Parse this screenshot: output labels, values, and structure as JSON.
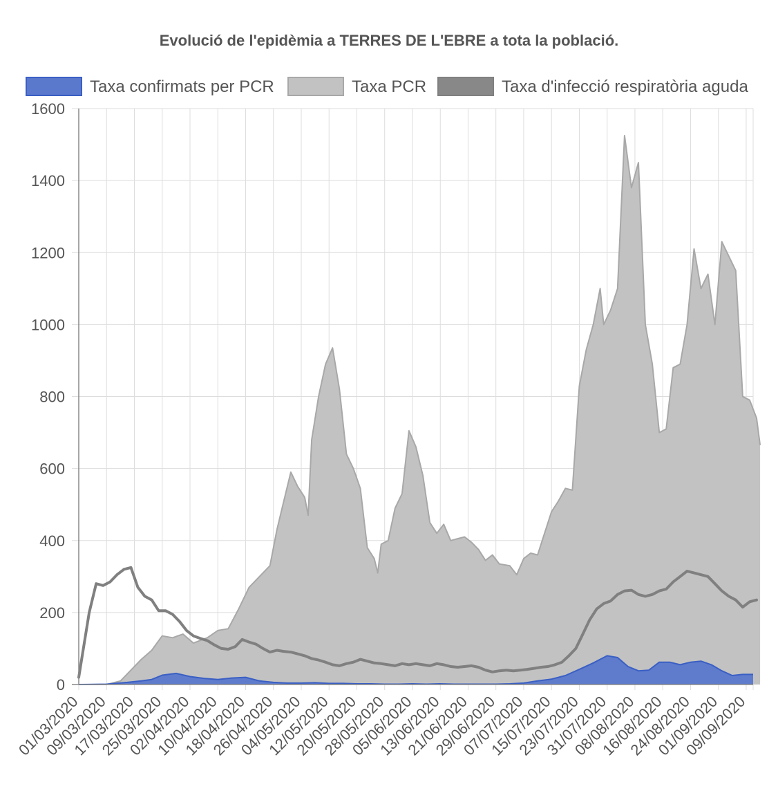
{
  "chart_data": {
    "type": "area",
    "title": "Evolució de l'epidèmia a TERRES DE L'EBRE a tota la població.",
    "xlabel": "",
    "ylabel": "",
    "ylim": [
      0,
      1600
    ],
    "yticks": [
      0,
      200,
      400,
      600,
      800,
      1000,
      1200,
      1400,
      1600
    ],
    "grid": true,
    "legend_position": "top",
    "x_start": "01/03/2020",
    "x_end": "11/09/2020",
    "x_tick_labels": [
      "01/03/2020",
      "09/03/2020",
      "17/03/2020",
      "25/03/2020",
      "02/04/2020",
      "10/04/2020",
      "18/04/2020",
      "26/04/2020",
      "04/05/2020",
      "12/05/2020",
      "20/05/2020",
      "28/05/2020",
      "05/06/2020",
      "13/06/2020",
      "21/06/2020",
      "29/06/2020",
      "07/07/2020",
      "15/07/2020",
      "23/07/2020",
      "31/07/2020",
      "08/08/2020",
      "16/08/2020",
      "24/08/2020",
      "01/09/2020",
      "09/09/2020"
    ],
    "series": [
      {
        "name": "Taxa confirmats per PCR",
        "style": "area",
        "color": "#3a5fc4",
        "fill": "#5a78cc",
        "points": [
          [
            "01/03/2020",
            0
          ],
          [
            "09/03/2020",
            1
          ],
          [
            "15/03/2020",
            6
          ],
          [
            "19/03/2020",
            10
          ],
          [
            "22/03/2020",
            14
          ],
          [
            "25/03/2020",
            26
          ],
          [
            "29/03/2020",
            31
          ],
          [
            "02/04/2020",
            22
          ],
          [
            "06/04/2020",
            17
          ],
          [
            "10/04/2020",
            14
          ],
          [
            "14/04/2020",
            18
          ],
          [
            "18/04/2020",
            20
          ],
          [
            "22/04/2020",
            10
          ],
          [
            "26/04/2020",
            6
          ],
          [
            "30/04/2020",
            4
          ],
          [
            "04/05/2020",
            4
          ],
          [
            "08/05/2020",
            5
          ],
          [
            "12/05/2020",
            3
          ],
          [
            "16/05/2020",
            3
          ],
          [
            "20/05/2020",
            2
          ],
          [
            "24/05/2020",
            2
          ],
          [
            "28/05/2020",
            1
          ],
          [
            "01/06/2020",
            1
          ],
          [
            "05/06/2020",
            2
          ],
          [
            "09/06/2020",
            1
          ],
          [
            "13/06/2020",
            2
          ],
          [
            "17/06/2020",
            1
          ],
          [
            "21/06/2020",
            1
          ],
          [
            "25/06/2020",
            1
          ],
          [
            "29/06/2020",
            1
          ],
          [
            "03/07/2020",
            2
          ],
          [
            "07/07/2020",
            4
          ],
          [
            "11/07/2020",
            10
          ],
          [
            "15/07/2020",
            15
          ],
          [
            "19/07/2020",
            25
          ],
          [
            "23/07/2020",
            42
          ],
          [
            "27/07/2020",
            60
          ],
          [
            "31/07/2020",
            80
          ],
          [
            "03/08/2020",
            75
          ],
          [
            "06/08/2020",
            50
          ],
          [
            "09/08/2020",
            38
          ],
          [
            "12/08/2020",
            40
          ],
          [
            "15/08/2020",
            62
          ],
          [
            "18/08/2020",
            62
          ],
          [
            "21/08/2020",
            55
          ],
          [
            "24/08/2020",
            62
          ],
          [
            "27/08/2020",
            65
          ],
          [
            "30/08/2020",
            55
          ],
          [
            "02/09/2020",
            38
          ],
          [
            "05/09/2020",
            25
          ],
          [
            "08/09/2020",
            28
          ],
          [
            "11/09/2020",
            28
          ]
        ]
      },
      {
        "name": "Taxa PCR",
        "style": "area",
        "color": "#a8a8a8",
        "fill": "#c2c2c2",
        "points": [
          [
            "01/03/2020",
            0
          ],
          [
            "09/03/2020",
            0
          ],
          [
            "13/03/2020",
            10
          ],
          [
            "16/03/2020",
            40
          ],
          [
            "19/03/2020",
            70
          ],
          [
            "22/03/2020",
            95
          ],
          [
            "25/03/2020",
            135
          ],
          [
            "28/03/2020",
            130
          ],
          [
            "31/03/2020",
            140
          ],
          [
            "03/04/2020",
            115
          ],
          [
            "07/04/2020",
            130
          ],
          [
            "10/04/2020",
            150
          ],
          [
            "13/04/2020",
            155
          ],
          [
            "16/04/2020",
            210
          ],
          [
            "19/04/2020",
            270
          ],
          [
            "22/04/2020",
            300
          ],
          [
            "25/04/2020",
            330
          ],
          [
            "27/04/2020",
            430
          ],
          [
            "29/04/2020",
            510
          ],
          [
            "01/05/2020",
            590
          ],
          [
            "03/05/2020",
            550
          ],
          [
            "05/05/2020",
            520
          ],
          [
            "06/05/2020",
            470
          ],
          [
            "07/05/2020",
            680
          ],
          [
            "09/05/2020",
            800
          ],
          [
            "11/05/2020",
            890
          ],
          [
            "13/05/2020",
            935
          ],
          [
            "15/05/2020",
            820
          ],
          [
            "17/05/2020",
            640
          ],
          [
            "19/05/2020",
            600
          ],
          [
            "21/05/2020",
            545
          ],
          [
            "23/05/2020",
            380
          ],
          [
            "25/05/2020",
            350
          ],
          [
            "26/05/2020",
            310
          ],
          [
            "27/05/2020",
            390
          ],
          [
            "29/05/2020",
            400
          ],
          [
            "31/05/2020",
            490
          ],
          [
            "02/06/2020",
            530
          ],
          [
            "04/06/2020",
            705
          ],
          [
            "06/06/2020",
            660
          ],
          [
            "08/06/2020",
            580
          ],
          [
            "10/06/2020",
            450
          ],
          [
            "12/06/2020",
            420
          ],
          [
            "14/06/2020",
            445
          ],
          [
            "16/06/2020",
            400
          ],
          [
            "18/06/2020",
            405
          ],
          [
            "20/06/2020",
            410
          ],
          [
            "22/06/2020",
            395
          ],
          [
            "24/06/2020",
            375
          ],
          [
            "26/06/2020",
            345
          ],
          [
            "28/06/2020",
            360
          ],
          [
            "30/06/2020",
            335
          ],
          [
            "03/07/2020",
            330
          ],
          [
            "05/07/2020",
            305
          ],
          [
            "07/07/2020",
            350
          ],
          [
            "09/07/2020",
            365
          ],
          [
            "11/07/2020",
            360
          ],
          [
            "13/07/2020",
            420
          ],
          [
            "15/07/2020",
            480
          ],
          [
            "17/07/2020",
            510
          ],
          [
            "19/07/2020",
            545
          ],
          [
            "21/07/2020",
            540
          ],
          [
            "23/07/2020",
            830
          ],
          [
            "25/07/2020",
            930
          ],
          [
            "27/07/2020",
            1000
          ],
          [
            "29/07/2020",
            1100
          ],
          [
            "30/07/2020",
            1000
          ],
          [
            "01/08/2020",
            1040
          ],
          [
            "03/08/2020",
            1100
          ],
          [
            "05/08/2020",
            1525
          ],
          [
            "07/08/2020",
            1380
          ],
          [
            "09/08/2020",
            1450
          ],
          [
            "11/08/2020",
            1000
          ],
          [
            "13/08/2020",
            890
          ],
          [
            "15/08/2020",
            700
          ],
          [
            "17/08/2020",
            710
          ],
          [
            "19/08/2020",
            880
          ],
          [
            "21/08/2020",
            890
          ],
          [
            "23/08/2020",
            1000
          ],
          [
            "25/08/2020",
            1210
          ],
          [
            "27/08/2020",
            1100
          ],
          [
            "29/08/2020",
            1140
          ],
          [
            "31/08/2020",
            1000
          ],
          [
            "02/09/2020",
            1230
          ],
          [
            "04/09/2020",
            1190
          ],
          [
            "06/09/2020",
            1150
          ],
          [
            "08/09/2020",
            800
          ],
          [
            "10/09/2020",
            790
          ],
          [
            "12/09/2020",
            740
          ],
          [
            "13/09/2020",
            665
          ]
        ]
      },
      {
        "name": "Taxa d'infecció respiratòria aguda",
        "style": "line",
        "color": "#808080",
        "fill": "#888888",
        "points": [
          [
            "01/03/2020",
            20
          ],
          [
            "02/03/2020",
            80
          ],
          [
            "04/03/2020",
            200
          ],
          [
            "06/03/2020",
            280
          ],
          [
            "08/03/2020",
            275
          ],
          [
            "10/03/2020",
            285
          ],
          [
            "12/03/2020",
            305
          ],
          [
            "14/03/2020",
            320
          ],
          [
            "16/03/2020",
            325
          ],
          [
            "18/03/2020",
            270
          ],
          [
            "20/03/2020",
            245
          ],
          [
            "22/03/2020",
            235
          ],
          [
            "24/03/2020",
            205
          ],
          [
            "26/03/2020",
            205
          ],
          [
            "28/03/2020",
            195
          ],
          [
            "30/03/2020",
            175
          ],
          [
            "01/04/2020",
            150
          ],
          [
            "03/04/2020",
            135
          ],
          [
            "05/04/2020",
            128
          ],
          [
            "07/04/2020",
            122
          ],
          [
            "09/04/2020",
            110
          ],
          [
            "11/04/2020",
            100
          ],
          [
            "13/04/2020",
            98
          ],
          [
            "15/04/2020",
            105
          ],
          [
            "17/04/2020",
            125
          ],
          [
            "19/04/2020",
            118
          ],
          [
            "21/04/2020",
            112
          ],
          [
            "23/04/2020",
            100
          ],
          [
            "25/04/2020",
            90
          ],
          [
            "27/04/2020",
            95
          ],
          [
            "29/04/2020",
            92
          ],
          [
            "01/05/2020",
            90
          ],
          [
            "03/05/2020",
            85
          ],
          [
            "05/05/2020",
            80
          ],
          [
            "07/05/2020",
            72
          ],
          [
            "09/05/2020",
            68
          ],
          [
            "11/05/2020",
            62
          ],
          [
            "13/05/2020",
            55
          ],
          [
            "15/05/2020",
            52
          ],
          [
            "17/05/2020",
            58
          ],
          [
            "19/05/2020",
            62
          ],
          [
            "21/05/2020",
            70
          ],
          [
            "23/05/2020",
            65
          ],
          [
            "25/05/2020",
            60
          ],
          [
            "27/05/2020",
            58
          ],
          [
            "29/05/2020",
            55
          ],
          [
            "31/05/2020",
            52
          ],
          [
            "02/06/2020",
            58
          ],
          [
            "04/06/2020",
            55
          ],
          [
            "06/06/2020",
            58
          ],
          [
            "08/06/2020",
            55
          ],
          [
            "10/06/2020",
            52
          ],
          [
            "12/06/2020",
            58
          ],
          [
            "14/06/2020",
            55
          ],
          [
            "16/06/2020",
            50
          ],
          [
            "18/06/2020",
            48
          ],
          [
            "20/06/2020",
            50
          ],
          [
            "22/06/2020",
            52
          ],
          [
            "24/06/2020",
            48
          ],
          [
            "26/06/2020",
            40
          ],
          [
            "28/06/2020",
            35
          ],
          [
            "30/06/2020",
            38
          ],
          [
            "02/07/2020",
            40
          ],
          [
            "04/07/2020",
            38
          ],
          [
            "06/07/2020",
            40
          ],
          [
            "08/07/2020",
            42
          ],
          [
            "10/07/2020",
            45
          ],
          [
            "12/07/2020",
            48
          ],
          [
            "14/07/2020",
            50
          ],
          [
            "16/07/2020",
            55
          ],
          [
            "18/07/2020",
            62
          ],
          [
            "20/07/2020",
            80
          ],
          [
            "22/07/2020",
            100
          ],
          [
            "24/07/2020",
            140
          ],
          [
            "26/07/2020",
            180
          ],
          [
            "28/07/2020",
            210
          ],
          [
            "30/07/2020",
            225
          ],
          [
            "01/08/2020",
            232
          ],
          [
            "03/08/2020",
            250
          ],
          [
            "05/08/2020",
            260
          ],
          [
            "07/08/2020",
            262
          ],
          [
            "09/08/2020",
            250
          ],
          [
            "11/08/2020",
            245
          ],
          [
            "13/08/2020",
            250
          ],
          [
            "15/08/2020",
            260
          ],
          [
            "17/08/2020",
            265
          ],
          [
            "19/08/2020",
            285
          ],
          [
            "21/08/2020",
            300
          ],
          [
            "23/08/2020",
            315
          ],
          [
            "25/08/2020",
            310
          ],
          [
            "27/08/2020",
            305
          ],
          [
            "29/08/2020",
            300
          ],
          [
            "31/08/2020",
            280
          ],
          [
            "02/09/2020",
            260
          ],
          [
            "04/09/2020",
            245
          ],
          [
            "06/09/2020",
            235
          ],
          [
            "08/09/2020",
            215
          ],
          [
            "10/09/2020",
            230
          ],
          [
            "12/09/2020",
            235
          ]
        ]
      }
    ]
  }
}
